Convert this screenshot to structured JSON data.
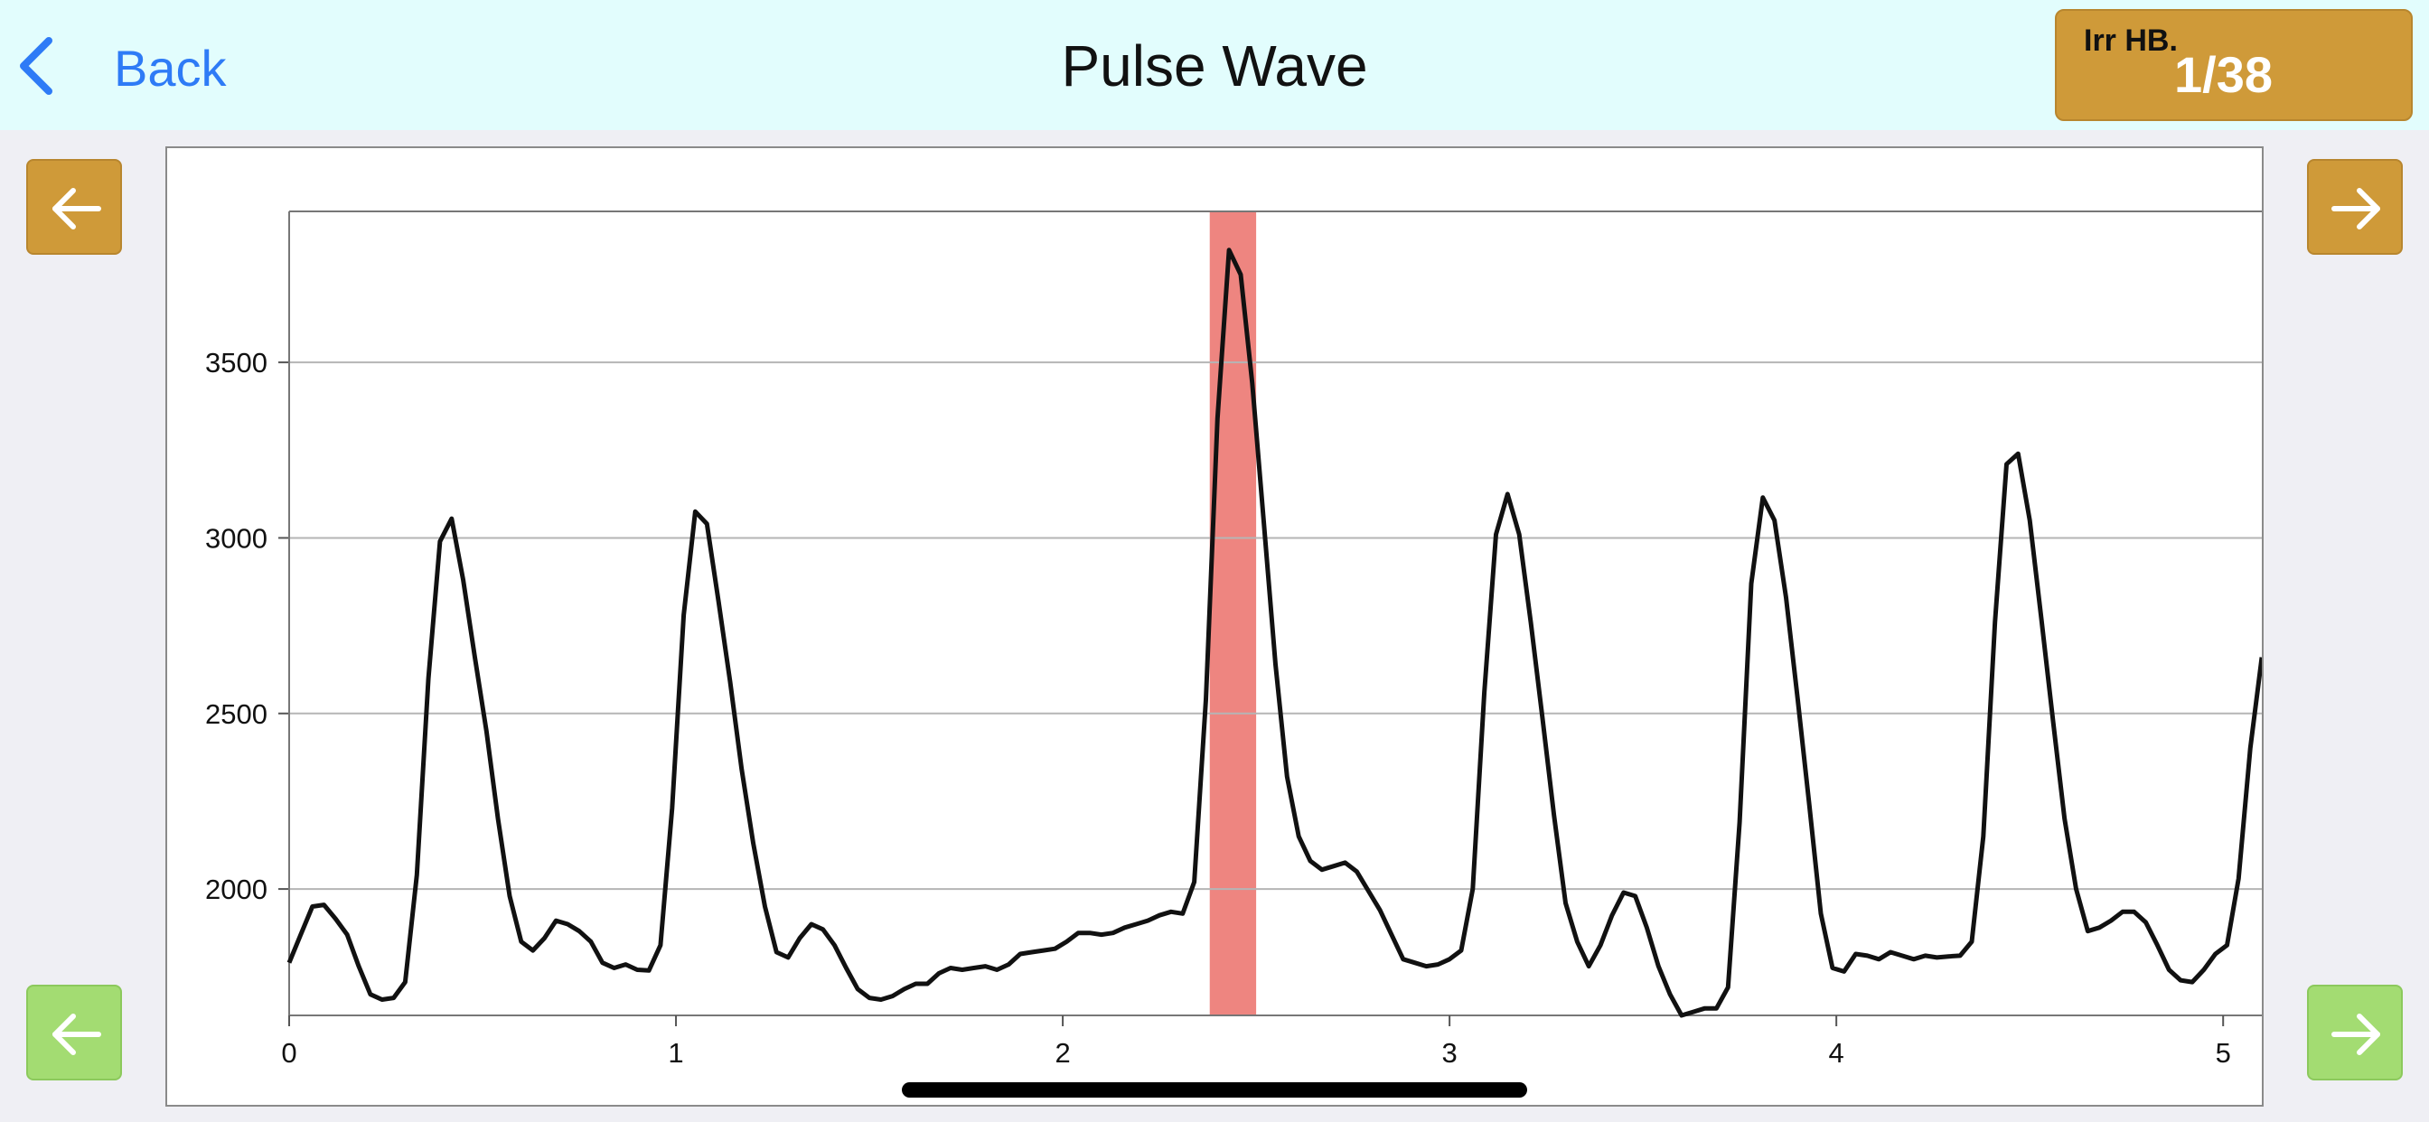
{
  "header": {
    "back_label": "Back",
    "title": "Pulse Wave",
    "badge_label": "Irr HB.",
    "badge_value": "1/38"
  },
  "icons": {
    "back": "chevron-left-icon",
    "prev": "arrow-left-icon",
    "next": "arrow-right-icon"
  },
  "colors": {
    "header_bg": "#e2fdfd",
    "accent_blue": "#2e7bf6",
    "orange_btn": "#cf9a39",
    "green_btn": "#a3dc72",
    "highlight": "#ee8580",
    "line": "#111111"
  },
  "chart_data": {
    "type": "line",
    "title": "",
    "xlabel": "",
    "ylabel": "",
    "xlim": [
      0,
      5.1
    ],
    "ylim": [
      1640,
      3930
    ],
    "xticks": [
      0,
      1,
      2,
      3,
      4,
      5
    ],
    "yticks": [
      2000,
      2500,
      3000,
      3500
    ],
    "grid": "horizontal",
    "highlight_x": [
      2.38,
      2.5
    ],
    "series": [
      {
        "points": [
          [
            0.0,
            1790
          ],
          [
            0.03,
            1870
          ],
          [
            0.06,
            1950
          ],
          [
            0.09,
            1955
          ],
          [
            0.12,
            1915
          ],
          [
            0.15,
            1870
          ],
          [
            0.18,
            1780
          ],
          [
            0.21,
            1700
          ],
          [
            0.24,
            1685
          ],
          [
            0.27,
            1690
          ],
          [
            0.3,
            1735
          ],
          [
            0.33,
            2040
          ],
          [
            0.36,
            2600
          ],
          [
            0.39,
            2990
          ],
          [
            0.42,
            3055
          ],
          [
            0.45,
            2880
          ],
          [
            0.48,
            2660
          ],
          [
            0.51,
            2450
          ],
          [
            0.54,
            2200
          ],
          [
            0.57,
            1980
          ],
          [
            0.6,
            1850
          ],
          [
            0.63,
            1825
          ],
          [
            0.66,
            1860
          ],
          [
            0.69,
            1910
          ],
          [
            0.72,
            1900
          ],
          [
            0.75,
            1880
          ],
          [
            0.78,
            1850
          ],
          [
            0.81,
            1790
          ],
          [
            0.84,
            1775
          ],
          [
            0.87,
            1785
          ],
          [
            0.9,
            1770
          ],
          [
            0.93,
            1768
          ],
          [
            0.96,
            1840
          ],
          [
            0.99,
            2230
          ],
          [
            1.02,
            2780
          ],
          [
            1.05,
            3075
          ],
          [
            1.08,
            3040
          ],
          [
            1.11,
            2820
          ],
          [
            1.14,
            2590
          ],
          [
            1.17,
            2340
          ],
          [
            1.2,
            2130
          ],
          [
            1.23,
            1950
          ],
          [
            1.26,
            1820
          ],
          [
            1.29,
            1805
          ],
          [
            1.32,
            1860
          ],
          [
            1.35,
            1900
          ],
          [
            1.38,
            1885
          ],
          [
            1.41,
            1840
          ],
          [
            1.44,
            1775
          ],
          [
            1.47,
            1715
          ],
          [
            1.5,
            1690
          ],
          [
            1.53,
            1685
          ],
          [
            1.56,
            1695
          ],
          [
            1.59,
            1715
          ],
          [
            1.62,
            1730
          ],
          [
            1.65,
            1730
          ],
          [
            1.68,
            1760
          ],
          [
            1.71,
            1775
          ],
          [
            1.74,
            1770
          ],
          [
            1.77,
            1775
          ],
          [
            1.8,
            1780
          ],
          [
            1.83,
            1770
          ],
          [
            1.86,
            1785
          ],
          [
            1.89,
            1815
          ],
          [
            1.92,
            1820
          ],
          [
            1.95,
            1825
          ],
          [
            1.98,
            1830
          ],
          [
            2.01,
            1850
          ],
          [
            2.04,
            1875
          ],
          [
            2.07,
            1875
          ],
          [
            2.1,
            1870
          ],
          [
            2.13,
            1875
          ],
          [
            2.16,
            1890
          ],
          [
            2.19,
            1900
          ],
          [
            2.22,
            1910
          ],
          [
            2.25,
            1925
          ],
          [
            2.28,
            1935
          ],
          [
            2.31,
            1930
          ],
          [
            2.34,
            2020
          ],
          [
            2.37,
            2540
          ],
          [
            2.4,
            3340
          ],
          [
            2.43,
            3820
          ],
          [
            2.46,
            3750
          ],
          [
            2.49,
            3440
          ],
          [
            2.52,
            3040
          ],
          [
            2.55,
            2640
          ],
          [
            2.58,
            2320
          ],
          [
            2.61,
            2150
          ],
          [
            2.64,
            2080
          ],
          [
            2.67,
            2055
          ],
          [
            2.7,
            2065
          ],
          [
            2.73,
            2075
          ],
          [
            2.76,
            2050
          ],
          [
            2.79,
            1995
          ],
          [
            2.82,
            1940
          ],
          [
            2.85,
            1870
          ],
          [
            2.88,
            1800
          ],
          [
            2.91,
            1790
          ],
          [
            2.94,
            1780
          ],
          [
            2.97,
            1785
          ],
          [
            3.0,
            1800
          ],
          [
            3.03,
            1825
          ],
          [
            3.06,
            2000
          ],
          [
            3.09,
            2560
          ],
          [
            3.12,
            3010
          ],
          [
            3.15,
            3125
          ],
          [
            3.18,
            3010
          ],
          [
            3.21,
            2760
          ],
          [
            3.24,
            2490
          ],
          [
            3.27,
            2210
          ],
          [
            3.3,
            1960
          ],
          [
            3.33,
            1850
          ],
          [
            3.36,
            1780
          ],
          [
            3.39,
            1840
          ],
          [
            3.42,
            1925
          ],
          [
            3.45,
            1990
          ],
          [
            3.48,
            1980
          ],
          [
            3.51,
            1890
          ],
          [
            3.54,
            1780
          ],
          [
            3.57,
            1700
          ],
          [
            3.6,
            1640
          ],
          [
            3.63,
            1650
          ],
          [
            3.66,
            1660
          ],
          [
            3.69,
            1660
          ],
          [
            3.72,
            1720
          ],
          [
            3.75,
            2190
          ],
          [
            3.78,
            2870
          ],
          [
            3.81,
            3115
          ],
          [
            3.84,
            3050
          ],
          [
            3.87,
            2830
          ],
          [
            3.9,
            2540
          ],
          [
            3.93,
            2240
          ],
          [
            3.96,
            1930
          ],
          [
            3.99,
            1775
          ],
          [
            4.02,
            1765
          ],
          [
            4.05,
            1815
          ],
          [
            4.08,
            1810
          ],
          [
            4.11,
            1800
          ],
          [
            4.14,
            1820
          ],
          [
            4.17,
            1810
          ],
          [
            4.2,
            1800
          ],
          [
            4.23,
            1810
          ],
          [
            4.26,
            1805
          ],
          [
            4.29,
            1808
          ],
          [
            4.32,
            1810
          ],
          [
            4.35,
            1850
          ],
          [
            4.38,
            2150
          ],
          [
            4.41,
            2760
          ],
          [
            4.44,
            3210
          ],
          [
            4.47,
            3240
          ],
          [
            4.5,
            3050
          ],
          [
            4.53,
            2770
          ],
          [
            4.56,
            2480
          ],
          [
            4.59,
            2200
          ],
          [
            4.62,
            2000
          ],
          [
            4.65,
            1880
          ],
          [
            4.68,
            1890
          ],
          [
            4.71,
            1910
          ],
          [
            4.74,
            1935
          ],
          [
            4.77,
            1935
          ],
          [
            4.8,
            1905
          ],
          [
            4.83,
            1840
          ],
          [
            4.86,
            1770
          ],
          [
            4.89,
            1740
          ],
          [
            4.92,
            1735
          ],
          [
            4.95,
            1770
          ],
          [
            4.98,
            1815
          ],
          [
            5.01,
            1840
          ],
          [
            5.04,
            2030
          ],
          [
            5.07,
            2400
          ],
          [
            5.1,
            2660
          ]
        ]
      }
    ]
  }
}
